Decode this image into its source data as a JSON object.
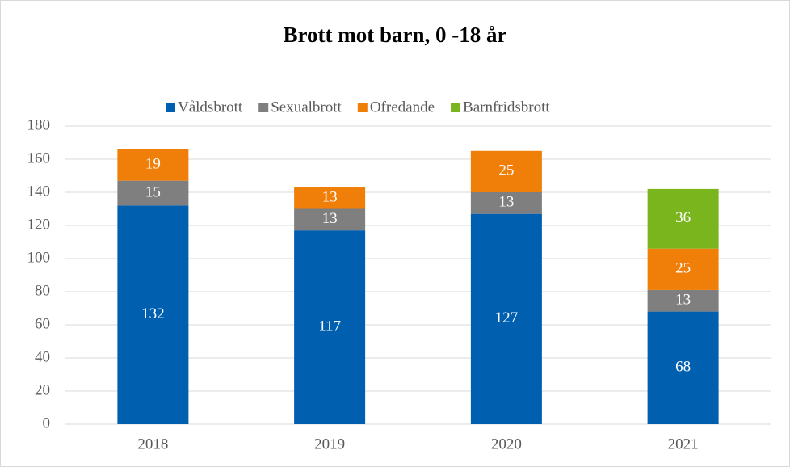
{
  "chart_data": {
    "type": "stacked_bar",
    "title": "Brott mot barn, 0 -18 år",
    "categories": [
      "2018",
      "2019",
      "2020",
      "2021"
    ],
    "series": [
      {
        "name": "Våldsbrott",
        "color": "#005faf",
        "values": [
          132,
          117,
          127,
          68
        ]
      },
      {
        "name": "Sexualbrott",
        "color": "#7f7f7f",
        "values": [
          15,
          13,
          13,
          13
        ]
      },
      {
        "name": "Ofredande",
        "color": "#f07f0a",
        "values": [
          19,
          13,
          25,
          25
        ]
      },
      {
        "name": "Barnfridsbrott",
        "color": "#7ab51d",
        "values": [
          null,
          null,
          null,
          36
        ]
      }
    ],
    "ylim": [
      0,
      180
    ],
    "yticks": [
      0,
      20,
      40,
      60,
      80,
      100,
      120,
      140,
      160,
      180
    ],
    "grid": true,
    "legend": "top",
    "data_labels": true
  }
}
